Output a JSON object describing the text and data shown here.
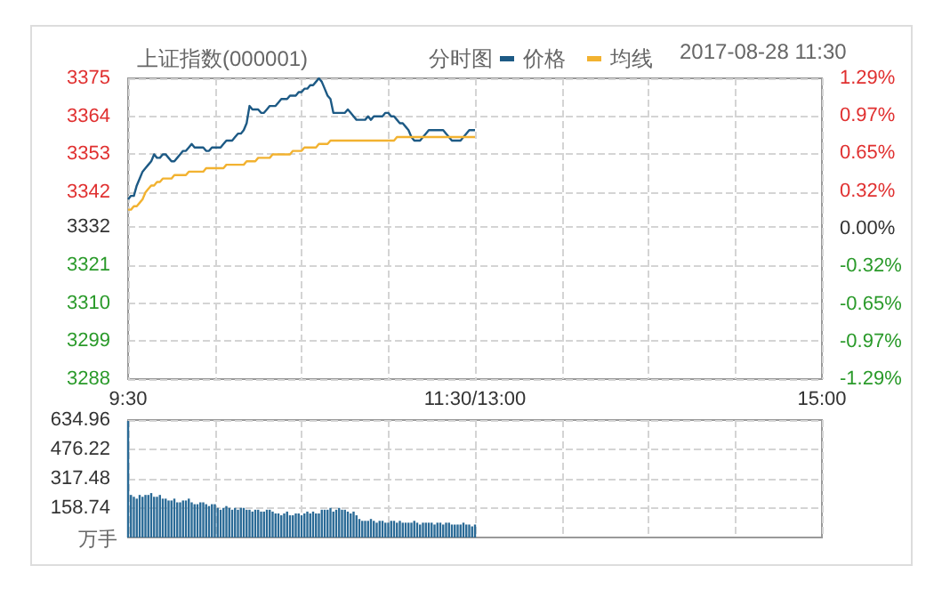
{
  "chart_data": [
    {
      "type": "line",
      "title": "上证指数(000001)",
      "subtitle": "分时图",
      "annotations": [
        "2017-08-28 11:30"
      ],
      "legend": "top right",
      "grid": true,
      "marker": "none",
      "categories": [
        "9:30",
        null,
        null,
        null,
        null,
        null,
        null,
        null,
        null,
        null,
        null,
        null,
        null,
        null,
        null,
        null,
        null,
        null,
        null,
        null,
        null,
        null,
        null,
        null,
        null,
        null,
        null,
        null,
        null,
        null,
        null,
        null,
        null,
        null,
        null,
        null,
        null,
        null,
        null,
        null,
        null,
        null,
        null,
        null,
        null,
        null,
        null,
        null,
        null,
        null,
        null,
        null,
        null,
        null,
        null,
        null,
        null,
        null,
        null,
        null,
        null,
        null,
        null,
        null,
        null,
        null,
        null,
        null,
        null,
        null,
        null,
        null,
        null,
        null,
        null,
        null,
        null,
        null,
        null,
        null,
        null,
        null,
        null,
        null,
        null,
        null,
        null,
        null,
        null,
        null,
        null,
        null,
        null,
        null,
        null,
        null,
        null,
        null,
        null,
        null,
        null,
        null,
        null,
        null,
        null,
        null,
        null,
        null,
        null,
        null,
        null,
        null,
        null,
        null,
        null,
        null,
        null,
        null,
        null,
        null,
        "11:30/13:00",
        null,
        null,
        null,
        null,
        null,
        null,
        null,
        null,
        null,
        null,
        null,
        null,
        null,
        null,
        null,
        null,
        null,
        null,
        null,
        null,
        null,
        null,
        null,
        null,
        null,
        null,
        null,
        null,
        null,
        null,
        null,
        null,
        null,
        null,
        null,
        null,
        null,
        null,
        null,
        null,
        null,
        null,
        null,
        null,
        null,
        null,
        null,
        null,
        null,
        null,
        null,
        null,
        null,
        null,
        null,
        null,
        null,
        null,
        null,
        null,
        null,
        null,
        null,
        null,
        null,
        null,
        null,
        null,
        null,
        null,
        null,
        null,
        null,
        null,
        null,
        null,
        null,
        null,
        null,
        null,
        null,
        null,
        null,
        null,
        null,
        null,
        null,
        null,
        null,
        null,
        null,
        null,
        null,
        null,
        null,
        null,
        null,
        null,
        null,
        null,
        null,
        null,
        null,
        null,
        null,
        null,
        null,
        null,
        null,
        null,
        null,
        null,
        null,
        null,
        null,
        null,
        null,
        null,
        null,
        "15:00"
      ],
      "series": [
        {
          "name": "价格",
          "color": "#1d5a85",
          "values": [
            3340,
            3341,
            3341,
            3344,
            3346,
            3348,
            3349,
            3350,
            3351,
            3353,
            3352,
            3352,
            3353,
            3353,
            3352,
            3351,
            3351,
            3352,
            3353,
            3354,
            3354,
            3355,
            3356,
            3355,
            3355,
            3355,
            3355,
            3354,
            3354,
            3355,
            3355,
            3355,
            3355,
            3356,
            3357,
            3357,
            3357,
            3358,
            3359,
            3359,
            3360,
            3362,
            3367,
            3366,
            3366,
            3366,
            3365,
            3365,
            3366,
            3367,
            3367,
            3367,
            3368,
            3369,
            3369,
            3369,
            3370,
            3370,
            3370,
            3371,
            3371,
            3372,
            3372,
            3373,
            3373,
            3374,
            3375,
            3374,
            3372,
            3370,
            3369,
            3365,
            3365,
            3365,
            3365,
            3365,
            3366,
            3365,
            3364,
            3363,
            3363,
            3363,
            3363,
            3364,
            3363,
            3364,
            3364,
            3364,
            3364,
            3365,
            3365,
            3364,
            3364,
            3363,
            3362,
            3362,
            3361,
            3360,
            3358,
            3357,
            3357,
            3357,
            3358,
            3359,
            3360,
            3360,
            3360,
            3360,
            3360,
            3360,
            3359,
            3358,
            3357,
            3357,
            3357,
            3357,
            3358,
            3359,
            3360,
            3360,
            3360,
            null,
            null,
            null,
            null,
            null,
            null,
            null,
            null,
            null,
            null,
            null,
            null,
            null,
            null,
            null,
            null,
            null,
            null,
            null,
            null,
            null,
            null,
            null,
            null,
            null,
            null,
            null,
            null,
            null,
            null,
            null,
            null,
            null,
            null,
            null,
            null,
            null,
            null,
            null,
            null,
            null,
            null,
            null,
            null,
            null,
            null,
            null,
            null,
            null,
            null,
            null,
            null,
            null,
            null,
            null,
            null,
            null,
            null,
            null,
            null,
            null,
            null,
            null,
            null,
            null,
            null,
            null,
            null,
            null,
            null,
            null,
            null,
            null,
            null,
            null,
            null,
            null,
            null,
            null,
            null,
            null,
            null,
            null,
            null,
            null,
            null,
            null,
            null,
            null,
            null,
            null,
            null,
            null,
            null,
            null,
            null,
            null,
            null,
            null,
            null,
            null,
            null,
            null,
            null,
            null,
            null,
            null,
            null,
            null,
            null,
            null,
            null,
            null,
            null,
            null,
            null,
            null,
            null,
            null,
            null
          ]
        },
        {
          "name": "均线",
          "color": "#f2b230",
          "values": [
            3337,
            3337,
            3338,
            3338,
            3339,
            3340,
            3342,
            3343,
            3344,
            3344,
            3345,
            3345,
            3346,
            3346,
            3346,
            3346,
            3347,
            3347,
            3347,
            3347,
            3347,
            3348,
            3348,
            3348,
            3348,
            3348,
            3348,
            3349,
            3349,
            3349,
            3349,
            3349,
            3349,
            3349,
            3350,
            3350,
            3350,
            3350,
            3350,
            3350,
            3350,
            3351,
            3351,
            3351,
            3351,
            3352,
            3352,
            3352,
            3352,
            3352,
            3353,
            3353,
            3353,
            3353,
            3353,
            3353,
            3353,
            3354,
            3354,
            3354,
            3354,
            3355,
            3355,
            3355,
            3355,
            3355,
            3356,
            3356,
            3356,
            3356,
            3357,
            3357,
            3357,
            3357,
            3357,
            3357,
            3357,
            3357,
            3357,
            3357,
            3357,
            3357,
            3357,
            3357,
            3357,
            3357,
            3357,
            3357,
            3357,
            3357,
            3357,
            3357,
            3357,
            3358,
            3358,
            3358,
            3358,
            3358,
            3358,
            3358,
            3358,
            3358,
            3358,
            3358,
            3358,
            3358,
            3358,
            3358,
            3358,
            3358,
            3358,
            3358,
            3358,
            3358,
            3358,
            3358,
            3358,
            3358,
            3358,
            3358,
            3358,
            null,
            null,
            null,
            null,
            null,
            null,
            null,
            null,
            null,
            null,
            null,
            null,
            null,
            null,
            null,
            null,
            null,
            null,
            null,
            null,
            null,
            null,
            null,
            null,
            null,
            null,
            null,
            null,
            null,
            null,
            null,
            null,
            null,
            null,
            null,
            null,
            null,
            null,
            null,
            null,
            null,
            null,
            null,
            null,
            null,
            null,
            null,
            null,
            null,
            null,
            null,
            null,
            null,
            null,
            null,
            null,
            null,
            null,
            null,
            null,
            null,
            null,
            null,
            null,
            null,
            null,
            null,
            null,
            null,
            null,
            null,
            null,
            null,
            null,
            null,
            null,
            null,
            null,
            null,
            null,
            null,
            null,
            null,
            null,
            null,
            null,
            null,
            null,
            null,
            null,
            null,
            null,
            null,
            null,
            null,
            null,
            null,
            null,
            null,
            null,
            null,
            null,
            null,
            null,
            null,
            null,
            null,
            null,
            null,
            null,
            null,
            null,
            null,
            null,
            null,
            null,
            null,
            null,
            null,
            null
          ]
        }
      ],
      "ylim": [
        3288,
        3375
      ],
      "yticks": [
        3288,
        3299,
        3310,
        3321,
        3332,
        3342,
        3353,
        3364,
        3375
      ],
      "y2lim": [
        -1.29,
        1.29
      ],
      "y2ticks": [
        {
          "value": -1.29,
          "label": "-1.29%"
        },
        {
          "value": -0.97,
          "label": "-0.97%"
        },
        {
          "value": -0.65,
          "label": "-0.65%"
        },
        {
          "value": -0.32,
          "label": "-0.32%"
        },
        {
          "value": 0,
          "label": "0.00%"
        },
        {
          "value": 0.32,
          "label": "0.32%"
        },
        {
          "value": 0.65,
          "label": "0.65%"
        },
        {
          "value": 0.97,
          "label": "0.97%"
        },
        {
          "value": 1.29,
          "label": "1.29%"
        }
      ]
    },
    {
      "type": "bar",
      "ylabel": "万手",
      "color": "#2a6a96",
      "grid": true,
      "categories": [
        null,
        null,
        null,
        null,
        null,
        null,
        null,
        null,
        null,
        null,
        null,
        null,
        null,
        null,
        null,
        null,
        null,
        null,
        null,
        null,
        null,
        null,
        null,
        null,
        null,
        null,
        null,
        null,
        null,
        null,
        null,
        null,
        null,
        null,
        null,
        null,
        null,
        null,
        null,
        null,
        null,
        null,
        null,
        null,
        null,
        null,
        null,
        null,
        null,
        null,
        null,
        null,
        null,
        null,
        null,
        null,
        null,
        null,
        null,
        null,
        null,
        null,
        null,
        null,
        null,
        null,
        null,
        null,
        null,
        null,
        null,
        null,
        null,
        null,
        null,
        null,
        null,
        null,
        null,
        null,
        null,
        null,
        null,
        null,
        null,
        null,
        null,
        null,
        null,
        null,
        null,
        null,
        null,
        null,
        null,
        null,
        null,
        null,
        null,
        null,
        null,
        null,
        null,
        null,
        null,
        null,
        null,
        null,
        null,
        null,
        null,
        null,
        null,
        null,
        null,
        null,
        null,
        null,
        null,
        null,
        null,
        null,
        null,
        null,
        null,
        null,
        null,
        null,
        null,
        null,
        null,
        null,
        null,
        null,
        null,
        null,
        null,
        null,
        null,
        null,
        null,
        null,
        null,
        null,
        null,
        null,
        null,
        null,
        null,
        null,
        null,
        null,
        null,
        null,
        null,
        null,
        null,
        null,
        null,
        null,
        null,
        null,
        null,
        null,
        null,
        null,
        null,
        null,
        null,
        null,
        null,
        null,
        null,
        null,
        null,
        null,
        null,
        null,
        null,
        null,
        null,
        null,
        null,
        null,
        null,
        null,
        null,
        null,
        null,
        null,
        null,
        null,
        null,
        null,
        null,
        null,
        null,
        null,
        null,
        null,
        null,
        null,
        null,
        null,
        null,
        null,
        null,
        null,
        null,
        null,
        null,
        null,
        null,
        null,
        null,
        null,
        null,
        null,
        null,
        null,
        null,
        null,
        null,
        null,
        null,
        null,
        null,
        null,
        null,
        null,
        null,
        null,
        null,
        null,
        null,
        null,
        null,
        null,
        null,
        null,
        null
      ],
      "values": [
        630,
        230,
        220,
        210,
        230,
        220,
        230,
        230,
        240,
        220,
        220,
        230,
        210,
        210,
        200,
        200,
        210,
        190,
        190,
        200,
        200,
        210,
        190,
        180,
        180,
        190,
        190,
        180,
        170,
        180,
        180,
        160,
        150,
        160,
        170,
        160,
        150,
        160,
        150,
        160,
        160,
        150,
        150,
        140,
        150,
        150,
        140,
        140,
        150,
        150,
        140,
        130,
        130,
        120,
        130,
        140,
        120,
        120,
        130,
        130,
        120,
        130,
        140,
        130,
        140,
        130,
        130,
        150,
        150,
        150,
        160,
        140,
        150,
        160,
        150,
        150,
        140,
        130,
        140,
        120,
        100,
        90,
        90,
        90,
        100,
        90,
        80,
        90,
        90,
        80,
        80,
        90,
        90,
        80,
        90,
        80,
        80,
        80,
        80,
        90,
        80,
        70,
        80,
        80,
        80,
        80,
        70,
        80,
        80,
        70,
        80,
        80,
        70,
        70,
        70,
        70,
        80,
        70,
        70,
        60,
        70,
        null,
        null,
        null,
        null,
        null,
        null,
        null,
        null,
        null,
        null,
        null,
        null,
        null,
        null,
        null,
        null,
        null,
        null,
        null,
        null,
        null,
        null,
        null,
        null,
        null,
        null,
        null,
        null,
        null,
        null,
        null,
        null,
        null,
        null,
        null,
        null,
        null,
        null,
        null,
        null,
        null,
        null,
        null,
        null,
        null,
        null,
        null,
        null,
        null,
        null,
        null,
        null,
        null,
        null,
        null,
        null,
        null,
        null,
        null,
        null,
        null,
        null,
        null,
        null,
        null,
        null,
        null,
        null,
        null,
        null,
        null,
        null,
        null,
        null,
        null,
        null,
        null,
        null,
        null,
        null,
        null,
        null,
        null,
        null,
        null,
        null,
        null,
        null,
        null,
        null,
        null,
        null,
        null,
        null,
        null,
        null,
        null,
        null,
        null,
        null,
        null,
        null,
        null,
        null,
        null,
        null,
        null,
        null,
        null,
        null,
        null,
        null,
        null,
        null,
        null,
        null,
        null,
        null,
        null,
        null
      ],
      "ylim": [
        0,
        634.96
      ],
      "yticks": [
        158.74,
        317.48,
        476.22,
        634.96
      ]
    }
  ]
}
